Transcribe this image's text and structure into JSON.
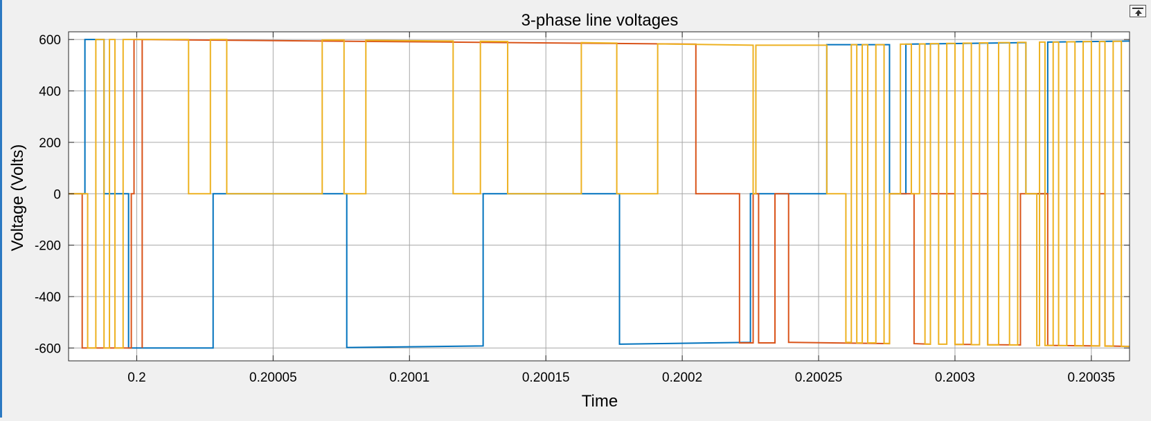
{
  "window": {
    "pin_icon": "undock-icon"
  },
  "chart_data": {
    "type": "line",
    "title": "3-phase line voltages",
    "xlabel": "Time",
    "ylabel": "Voltage (Volts)",
    "xlim": [
      0.199975,
      0.200364
    ],
    "ylim": [
      -650,
      630
    ],
    "grid": true,
    "xticks": [
      0.2,
      0.20005,
      0.2001,
      0.20015,
      0.2002,
      0.20025,
      0.2003,
      0.20035
    ],
    "xtick_labels": [
      "0.2",
      "0.20005",
      "0.2001",
      "0.20015",
      "0.2002",
      "0.20025",
      "0.2003",
      "0.20035"
    ],
    "yticks": [
      600,
      400,
      200,
      0,
      -200,
      -400,
      -600
    ],
    "ytick_labels": [
      "600",
      "400",
      "200",
      "0",
      "-200",
      "-400",
      "-600"
    ],
    "colors": {
      "series1": "#0072bd",
      "series2": "#d95319",
      "series3": "#edb120",
      "axes_bg": "#ffffff",
      "grid": "#a6a6a6"
    },
    "series": [
      {
        "color": "#0072bd",
        "points": [
          [
            0.199975,
            0
          ],
          [
            0.199981,
            0
          ],
          [
            0.199981,
            600
          ],
          [
            0.199988,
            600
          ],
          [
            0.199988,
            0
          ],
          [
            0.199997,
            0
          ],
          [
            0.199997,
            -600
          ],
          [
            0.200028,
            -600
          ],
          [
            0.200028,
            0
          ],
          [
            0.200077,
            0
          ],
          [
            0.200077,
            -598
          ],
          [
            0.200127,
            -592
          ],
          [
            0.200127,
            0
          ],
          [
            0.200177,
            0
          ],
          [
            0.200177,
            -585
          ],
          [
            0.200225,
            -578
          ],
          [
            0.200225,
            0
          ],
          [
            0.200253,
            0
          ],
          [
            0.200253,
            580
          ],
          [
            0.200276,
            580
          ],
          [
            0.200276,
            0
          ],
          [
            0.200282,
            0
          ],
          [
            0.200282,
            582
          ],
          [
            0.200326,
            588
          ],
          [
            0.200326,
            0
          ],
          [
            0.200334,
            0
          ],
          [
            0.200334,
            590
          ],
          [
            0.200364,
            594
          ]
        ]
      },
      {
        "color": "#d95319",
        "points": [
          [
            0.199975,
            0
          ],
          [
            0.19998,
            0
          ],
          [
            0.19998,
            -600
          ],
          [
            0.199998,
            -600
          ],
          [
            0.199998,
            0
          ],
          [
            0.199999,
            0
          ],
          [
            0.199999,
            600
          ],
          [
            0.200002,
            600
          ],
          [
            0.200002,
            -600
          ],
          [
            0.200002,
            600
          ],
          [
            0.200205,
            582
          ],
          [
            0.200205,
            0
          ],
          [
            0.200221,
            0
          ],
          [
            0.200221,
            -580
          ],
          [
            0.200226,
            -580
          ],
          [
            0.200226,
            0
          ],
          [
            0.200228,
            0
          ],
          [
            0.200228,
            -580
          ],
          [
            0.200234,
            -580
          ],
          [
            0.200234,
            0
          ],
          [
            0.200239,
            0
          ],
          [
            0.200239,
            -578
          ],
          [
            0.200276,
            -583
          ],
          [
            0.200276,
            0
          ],
          [
            0.200285,
            0
          ],
          [
            0.200285,
            -583
          ],
          [
            0.200291,
            -585
          ],
          [
            0.200291,
            0
          ],
          [
            0.2003,
            0
          ],
          [
            0.2003,
            -586
          ],
          [
            0.200306,
            -586
          ],
          [
            0.200306,
            0
          ],
          [
            0.200312,
            0
          ],
          [
            0.200312,
            -587
          ],
          [
            0.200324,
            -588
          ],
          [
            0.200324,
            0
          ],
          [
            0.200334,
            0
          ],
          [
            0.200334,
            -590
          ],
          [
            0.200353,
            -592
          ],
          [
            0.200353,
            0
          ],
          [
            0.200355,
            0
          ],
          [
            0.200355,
            -592
          ],
          [
            0.200364,
            -594
          ]
        ]
      },
      {
        "color": "#edb120",
        "points": [
          [
            0.199975,
            0
          ],
          [
            0.199982,
            0
          ],
          [
            0.199982,
            -600
          ],
          [
            0.199985,
            -600
          ],
          [
            0.199985,
            600
          ],
          [
            0.199988,
            600
          ],
          [
            0.199988,
            -600
          ],
          [
            0.19999,
            -600
          ],
          [
            0.19999,
            600
          ],
          [
            0.199992,
            600
          ],
          [
            0.199992,
            -600
          ],
          [
            0.199995,
            -600
          ],
          [
            0.199995,
            600
          ],
          [
            0.200019,
            600
          ],
          [
            0.200019,
            0
          ],
          [
            0.200027,
            0
          ],
          [
            0.200027,
            600
          ],
          [
            0.200033,
            600
          ],
          [
            0.200033,
            0
          ],
          [
            0.200068,
            0
          ],
          [
            0.200068,
            598
          ],
          [
            0.200076,
            598
          ],
          [
            0.200076,
            0
          ],
          [
            0.200084,
            0
          ],
          [
            0.200084,
            597
          ],
          [
            0.200116,
            594
          ],
          [
            0.200116,
            0
          ],
          [
            0.200126,
            0
          ],
          [
            0.200126,
            593
          ],
          [
            0.200136,
            592
          ],
          [
            0.200136,
            0
          ],
          [
            0.200163,
            0
          ],
          [
            0.200163,
            588
          ],
          [
            0.200176,
            586
          ],
          [
            0.200176,
            0
          ],
          [
            0.200191,
            0
          ],
          [
            0.200191,
            583
          ],
          [
            0.200226,
            578
          ],
          [
            0.200226,
            0
          ],
          [
            0.200227,
            0
          ],
          [
            0.200227,
            578
          ],
          [
            0.200253,
            578
          ],
          [
            0.200253,
            0
          ],
          [
            0.20026,
            0
          ],
          [
            0.20026,
            -578
          ],
          [
            0.200262,
            -578
          ],
          [
            0.200262,
            580
          ],
          [
            0.200264,
            580
          ],
          [
            0.200264,
            -580
          ],
          [
            0.200266,
            -580
          ],
          [
            0.200266,
            580
          ],
          [
            0.200268,
            580
          ],
          [
            0.200268,
            -580
          ],
          [
            0.200271,
            -580
          ],
          [
            0.200271,
            580
          ],
          [
            0.200274,
            580
          ],
          [
            0.200274,
            -582
          ],
          [
            0.200276,
            -582
          ],
          [
            0.200276,
            0
          ],
          [
            0.20028,
            0
          ],
          [
            0.20028,
            582
          ],
          [
            0.200284,
            582
          ],
          [
            0.200284,
            0
          ],
          [
            0.200287,
            0
          ],
          [
            0.200287,
            583
          ],
          [
            0.200289,
            583
          ],
          [
            0.200289,
            -585
          ],
          [
            0.200291,
            -585
          ],
          [
            0.200291,
            584
          ],
          [
            0.200294,
            584
          ],
          [
            0.200294,
            -585
          ],
          [
            0.200297,
            -585
          ],
          [
            0.200297,
            585
          ],
          [
            0.2003,
            585
          ],
          [
            0.2003,
            -586
          ],
          [
            0.200303,
            -586
          ],
          [
            0.200303,
            586
          ],
          [
            0.200306,
            586
          ],
          [
            0.200306,
            -587
          ],
          [
            0.200309,
            -587
          ],
          [
            0.200309,
            587
          ],
          [
            0.200312,
            587
          ],
          [
            0.200312,
            -588
          ],
          [
            0.200316,
            -588
          ],
          [
            0.200316,
            588
          ],
          [
            0.20032,
            588
          ],
          [
            0.20032,
            -588
          ],
          [
            0.200323,
            -588
          ],
          [
            0.200323,
            589
          ],
          [
            0.200326,
            589
          ],
          [
            0.200326,
            0
          ],
          [
            0.20033,
            0
          ],
          [
            0.20033,
            -590
          ],
          [
            0.200331,
            -590
          ],
          [
            0.200331,
            590
          ],
          [
            0.200333,
            590
          ],
          [
            0.200333,
            -590
          ],
          [
            0.200336,
            -590
          ],
          [
            0.200336,
            590
          ],
          [
            0.200338,
            590
          ],
          [
            0.200338,
            -591
          ],
          [
            0.200341,
            -591
          ],
          [
            0.200341,
            591
          ],
          [
            0.200344,
            591
          ],
          [
            0.200344,
            -592
          ],
          [
            0.200347,
            -592
          ],
          [
            0.200347,
            592
          ],
          [
            0.20035,
            592
          ],
          [
            0.20035,
            -592
          ],
          [
            0.200353,
            -592
          ],
          [
            0.200353,
            592
          ],
          [
            0.200355,
            592
          ],
          [
            0.200355,
            -593
          ],
          [
            0.200358,
            -593
          ],
          [
            0.200358,
            593
          ],
          [
            0.200361,
            593
          ],
          [
            0.200361,
            -594
          ],
          [
            0.200364,
            -594
          ]
        ]
      }
    ]
  }
}
